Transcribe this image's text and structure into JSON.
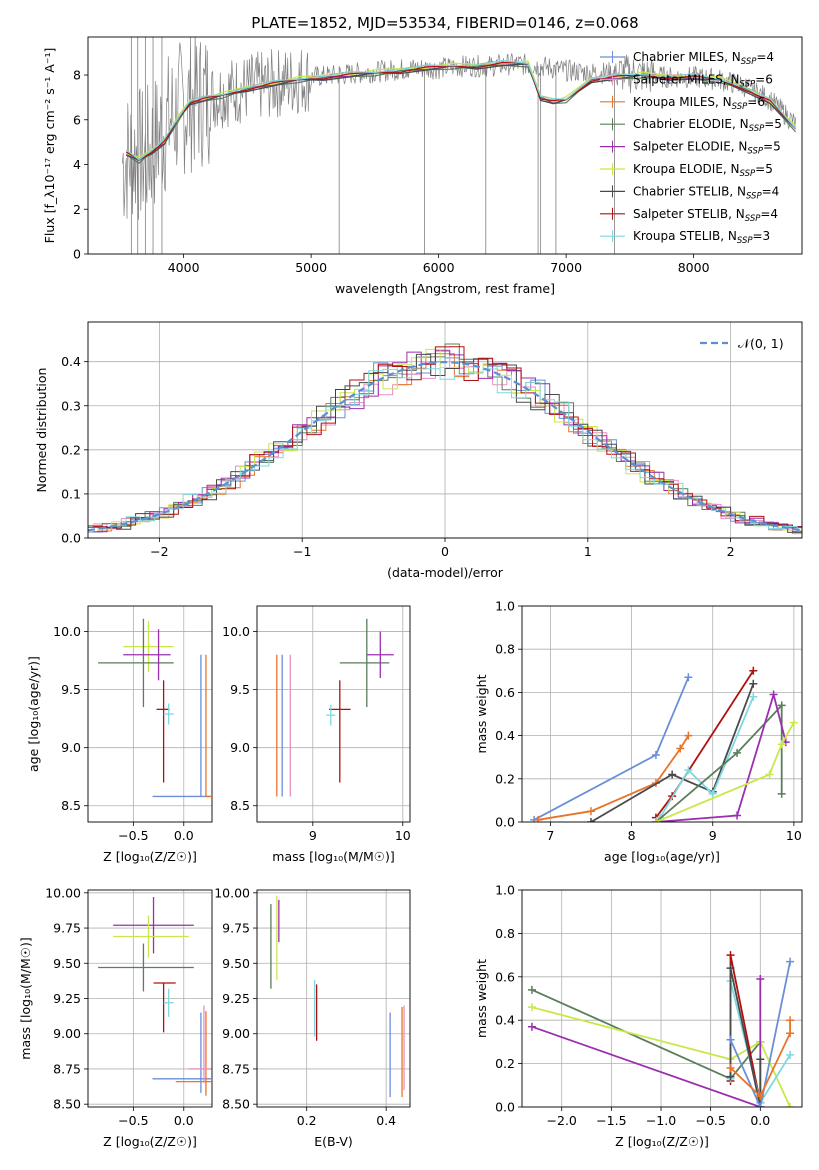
{
  "colors": {
    "chabrier_miles": "#6a8fd8",
    "salpeter_miles": "#e88fc4",
    "kroupa_miles": "#e8742a",
    "chabrier_elodie": "#5a7d5a",
    "salpeter_elodie": "#9b2fae",
    "kroupa_elodie": "#c8e84a",
    "chabrier_stelib": "#4a4a4a",
    "salpeter_stelib": "#b01010",
    "kroupa_stelib": "#7ed8e0",
    "data_gray": "#808080",
    "normal_curve": "#5b8fd6"
  },
  "chart_data": [
    {
      "id": "spectrum",
      "type": "line",
      "title": "PLATE=1852, MJD=53534, FIBERID=0146, z=0.068",
      "xlabel": "wavelength [Angstrom, rest frame]",
      "ylabel": "Flux [f_λ10⁻¹⁷ erg cm⁻² s⁻¹ A⁻¹]",
      "xlim": [
        3250,
        8850
      ],
      "ylim": [
        0,
        9.7
      ],
      "xticks": [
        4000,
        5000,
        6000,
        7000,
        8000
      ],
      "yticks": [
        0,
        2,
        4,
        6,
        8
      ],
      "grid": false,
      "legend_position": "right",
      "legend": [
        {
          "label": "Chabrier MILES, N",
          "sub": "SSP",
          "tail": "=4",
          "color_key": "chabrier_miles"
        },
        {
          "label": "Salpeter MILES, N",
          "sub": "SSP",
          "tail": "=6",
          "color_key": "salpeter_miles"
        },
        {
          "label": "Kroupa MILES, N",
          "sub": "SSP",
          "tail": "=6",
          "color_key": "kroupa_miles"
        },
        {
          "label": "Chabrier ELODIE, N",
          "sub": "SSP",
          "tail": "=5",
          "color_key": "chabrier_elodie"
        },
        {
          "label": "Salpeter ELODIE, N",
          "sub": "SSP",
          "tail": "=5",
          "color_key": "salpeter_elodie"
        },
        {
          "label": "Kroupa ELODIE, N",
          "sub": "SSP",
          "tail": "=5",
          "color_key": "kroupa_elodie"
        },
        {
          "label": "Chabrier STELIB, N",
          "sub": "SSP",
          "tail": "=4",
          "color_key": "chabrier_stelib"
        },
        {
          "label": "Salpeter STELIB, N",
          "sub": "SSP",
          "tail": "=4",
          "color_key": "salpeter_stelib"
        },
        {
          "label": "Kroupa STELIB, N",
          "sub": "SSP",
          "tail": "=3",
          "color_key": "kroupa_stelib"
        }
      ],
      "model_curve": {
        "x": [
          3550,
          3650,
          3750,
          3850,
          3950,
          4050,
          4150,
          4300,
          4500,
          4700,
          4900,
          5100,
          5300,
          5500,
          5700,
          5900,
          6100,
          6300,
          6500,
          6700,
          6800,
          6900,
          7000,
          7200,
          7400,
          7600,
          7800,
          8000,
          8200,
          8400,
          8600,
          8800
        ],
        "y": [
          4.5,
          4.2,
          4.6,
          5.0,
          6.0,
          6.8,
          6.9,
          7.1,
          7.4,
          7.6,
          7.8,
          7.9,
          8.0,
          8.1,
          8.2,
          8.3,
          8.4,
          8.4,
          8.5,
          8.5,
          7.0,
          6.8,
          6.9,
          7.8,
          7.9,
          8.0,
          7.9,
          7.9,
          7.8,
          7.4,
          6.8,
          5.6
        ]
      },
      "data_curve": {
        "x": [
          3500,
          3600,
          3700,
          3800,
          3900,
          4000,
          4100,
          4200,
          4300,
          4400,
          4500,
          4600,
          4700,
          4800,
          4900,
          5000,
          5200,
          5400,
          5600,
          5800,
          6000,
          6200,
          6400,
          6600,
          6800,
          7000,
          7200,
          7400,
          7600,
          7800,
          8000,
          8200,
          8400,
          8600,
          8800
        ],
        "y": [
          4.0,
          4.5,
          4.3,
          5.2,
          6.1,
          6.6,
          6.9,
          7.0,
          7.2,
          7.3,
          7.4,
          7.5,
          7.6,
          7.7,
          7.8,
          7.9,
          8.0,
          8.1,
          8.2,
          8.3,
          8.3,
          8.4,
          8.4,
          8.5,
          8.4,
          8.2,
          8.1,
          8.1,
          8.0,
          7.9,
          7.9,
          7.8,
          7.5,
          6.9,
          5.8
        ]
      }
    },
    {
      "id": "residuals",
      "type": "step",
      "xlabel": "(data-model)/error",
      "ylabel": "Normed distribution",
      "xlim": [
        -2.5,
        2.5
      ],
      "ylim": [
        0,
        0.49
      ],
      "xticks": [
        -2,
        -1,
        0,
        1,
        2
      ],
      "yticks": [
        0.0,
        0.1,
        0.2,
        0.3,
        0.4
      ],
      "grid": true,
      "legend_position": "top-right",
      "legend": [
        {
          "label": "𝒩(0, 1)",
          "color_key": "normal_curve",
          "style": "dashed"
        }
      ],
      "normal": {
        "mean": 0,
        "sigma": 1
      }
    },
    {
      "id": "age_vs_Z",
      "type": "errorbar",
      "xlabel": "Z [log₁₀(Z/Z☉)]",
      "ylabel": "age  [log₁₀(age/yr)]",
      "xlim": [
        -0.95,
        0.28
      ],
      "ylim": [
        8.36,
        10.22
      ],
      "xticks": [
        -0.5,
        0.0
      ],
      "yticks": [
        8.5,
        9.0,
        9.5,
        10.0
      ],
      "grid": true,
      "points": [
        {
          "color_key": "kroupa_elodie",
          "x": -0.35,
          "xerr": [
            0.25,
            0.25
          ],
          "y": 9.87,
          "yerr": [
            0.22,
            0.22
          ]
        },
        {
          "color_key": "chabrier_elodie",
          "x": -0.4,
          "xerr": [
            0.45,
            0.3
          ],
          "y": 9.73,
          "yerr": [
            0.38,
            0.38
          ]
        },
        {
          "color_key": "salpeter_elodie",
          "x": -0.25,
          "xerr": [
            0.35,
            0.12
          ],
          "y": 9.8,
          "yerr": [
            0.22,
            0.22
          ]
        },
        {
          "color_key": "salpeter_stelib",
          "x": -0.2,
          "xerr": [
            0.07,
            0.06
          ],
          "y": 9.33,
          "yerr": [
            0.63,
            0.25
          ]
        },
        {
          "color_key": "kroupa_stelib",
          "x": -0.15,
          "xerr": [
            0.05,
            0.05
          ],
          "y": 9.29,
          "yerr": [
            0.09,
            0.09
          ]
        },
        {
          "color_key": "chabrier_miles",
          "x": 0.17,
          "xerr": [
            0.48,
            0.1
          ],
          "y": 8.58,
          "yerr": [
            0.0,
            1.22
          ]
        },
        {
          "color_key": "kroupa_miles",
          "x": 0.22,
          "xerr": [
            0.0,
            0.05
          ],
          "y": 8.58,
          "yerr": [
            0.0,
            1.22
          ]
        }
      ]
    },
    {
      "id": "age_vs_mass",
      "type": "errorbar",
      "xlabel": "mass [log₁₀(M/M☉)]",
      "ylabel": "",
      "xlim": [
        8.38,
        10.08
      ],
      "ylim": [
        8.36,
        10.22
      ],
      "xticks": [
        9,
        10
      ],
      "yticks": [
        8.5,
        9.0,
        9.5,
        10.0
      ],
      "grid": true,
      "points": [
        {
          "color_key": "chabrier_elodie",
          "x": 9.6,
          "xerr": [
            0.3,
            0.25
          ],
          "y": 9.73,
          "yerr": [
            0.38,
            0.38
          ]
        },
        {
          "color_key": "salpeter_elodie",
          "x": 9.75,
          "xerr": [
            0.15,
            0.15
          ],
          "y": 9.8,
          "yerr": [
            0.2,
            0.2
          ]
        },
        {
          "color_key": "salpeter_stelib",
          "x": 9.3,
          "xerr": [
            0.12,
            0.12
          ],
          "y": 9.33,
          "yerr": [
            0.63,
            0.25
          ]
        },
        {
          "color_key": "kroupa_stelib",
          "x": 9.2,
          "xerr": [
            0.05,
            0.05
          ],
          "y": 9.28,
          "yerr": [
            0.09,
            0.09
          ]
        },
        {
          "color_key": "chabrier_miles",
          "x": 8.66,
          "xerr": [
            0.0,
            0.0
          ],
          "y": 8.58,
          "yerr": [
            0.0,
            1.22
          ]
        },
        {
          "color_key": "kroupa_miles",
          "x": 8.6,
          "xerr": [
            0.0,
            0.0
          ],
          "y": 8.58,
          "yerr": [
            0.0,
            1.22
          ]
        },
        {
          "color_key": "salpeter_miles",
          "x": 8.75,
          "xerr": [
            0.0,
            0.0
          ],
          "y": 8.58,
          "yerr": [
            0.0,
            1.22
          ]
        }
      ]
    },
    {
      "id": "mass_weight_vs_age",
      "type": "line",
      "xlabel": "age  [log₁₀(age/yr)]",
      "ylabel": "mass weight",
      "xlim": [
        6.65,
        10.1
      ],
      "ylim": [
        0,
        1.0
      ],
      "xticks": [
        7,
        8,
        9,
        10
      ],
      "yticks": [
        0.0,
        0.2,
        0.4,
        0.6,
        0.8,
        1.0
      ],
      "grid": true,
      "series": [
        {
          "color_key": "chabrier_miles",
          "x": [
            6.8,
            8.3,
            8.7
          ],
          "y": [
            0.01,
            0.31,
            0.67
          ]
        },
        {
          "color_key": "kroupa_miles",
          "x": [
            6.85,
            7.5,
            8.3,
            8.6,
            8.7
          ],
          "y": [
            0.01,
            0.05,
            0.18,
            0.34,
            0.4
          ]
        },
        {
          "color_key": "salpeter_stelib",
          "x": [
            8.3,
            8.5,
            9.5
          ],
          "y": [
            0.02,
            0.12,
            0.7
          ]
        },
        {
          "color_key": "chabrier_stelib",
          "x": [
            7.5,
            8.5,
            9.0,
            9.5
          ],
          "y": [
            0.0,
            0.22,
            0.14,
            0.64
          ]
        },
        {
          "color_key": "kroupa_stelib",
          "x": [
            8.35,
            8.7,
            9.0,
            9.5
          ],
          "y": [
            0.02,
            0.24,
            0.13,
            0.58
          ]
        },
        {
          "color_key": "chabrier_elodie",
          "x": [
            8.3,
            9.3,
            9.85,
            9.85
          ],
          "y": [
            0.0,
            0.32,
            0.54,
            0.13
          ]
        },
        {
          "color_key": "salpeter_elodie",
          "x": [
            8.3,
            9.3,
            9.75,
            9.9
          ],
          "y": [
            0.0,
            0.03,
            0.59,
            0.37
          ]
        },
        {
          "color_key": "kroupa_elodie",
          "x": [
            8.3,
            9.7,
            9.85,
            10.0
          ],
          "y": [
            0.0,
            0.22,
            0.36,
            0.46
          ]
        }
      ]
    },
    {
      "id": "mass_vs_Z",
      "type": "errorbar",
      "xlabel": "Z [log₁₀(Z/Z☉)]",
      "ylabel": "mass [log₁₀(M/M☉)]",
      "xlim": [
        -0.95,
        0.28
      ],
      "ylim": [
        8.48,
        10.02
      ],
      "xticks": [
        -0.5,
        0.0
      ],
      "yticks": [
        8.5,
        8.75,
        9.0,
        9.25,
        9.5,
        9.75,
        10.0
      ],
      "grid": true,
      "points": [
        {
          "color_key": "salpeter_elodie",
          "x": -0.3,
          "xerr": [
            0.4,
            0.4
          ],
          "y": 9.77,
          "yerr": [
            0.2,
            0.2
          ]
        },
        {
          "color_key": "kroupa_elodie",
          "x": -0.35,
          "xerr": [
            0.35,
            0.4
          ],
          "y": 9.69,
          "yerr": [
            0.15,
            0.15
          ]
        },
        {
          "color_key": "chabrier_elodie",
          "x": -0.4,
          "xerr": [
            0.45,
            0.5
          ],
          "y": 9.47,
          "yerr": [
            0.17,
            0.17
          ]
        },
        {
          "color_key": "salpeter_stelib",
          "x": -0.2,
          "xerr": [
            0.1,
            0.12
          ],
          "y": 9.36,
          "yerr": [
            0.35,
            0.0
          ]
        },
        {
          "color_key": "kroupa_stelib",
          "x": -0.15,
          "xerr": [
            0.05,
            0.05
          ],
          "y": 9.22,
          "yerr": [
            0.1,
            0.1
          ]
        },
        {
          "color_key": "chabrier_miles",
          "x": 0.17,
          "xerr": [
            0.48,
            0.1
          ],
          "y": 8.68,
          "yerr": [
            0.1,
            0.47
          ]
        },
        {
          "color_key": "kroupa_miles",
          "x": 0.22,
          "xerr": [
            0.3,
            0.05
          ],
          "y": 8.66,
          "yerr": [
            0.1,
            0.5
          ]
        },
        {
          "color_key": "salpeter_miles",
          "x": 0.2,
          "xerr": [
            0.15,
            0.1
          ],
          "y": 8.75,
          "yerr": [
            0.1,
            0.45
          ]
        }
      ]
    },
    {
      "id": "mass_vs_EBV",
      "type": "errorbar",
      "xlabel": "E(B-V)",
      "ylabel": "",
      "xlim": [
        0.075,
        0.46
      ],
      "ylim": [
        8.48,
        10.02
      ],
      "xticks": [
        0.2,
        0.4
      ],
      "yticks": [
        8.5,
        8.75,
        9.0,
        9.25,
        9.5,
        9.75,
        10.0
      ],
      "grid": true,
      "points": [
        {
          "color_key": "chabrier_elodie",
          "x": 0.11,
          "xerr": [
            0,
            0
          ],
          "y": 9.62,
          "yerr": [
            0.3,
            0.3
          ]
        },
        {
          "color_key": "salpeter_elodie",
          "x": 0.13,
          "xerr": [
            0,
            0
          ],
          "y": 9.8,
          "yerr": [
            0.15,
            0.15
          ]
        },
        {
          "color_key": "kroupa_elodie",
          "x": 0.125,
          "xerr": [
            0,
            0
          ],
          "y": 9.68,
          "yerr": [
            0.3,
            0.3
          ]
        },
        {
          "color_key": "salpeter_stelib",
          "x": 0.225,
          "xerr": [
            0,
            0
          ],
          "y": 9.15,
          "yerr": [
            0.2,
            0.2
          ]
        },
        {
          "color_key": "kroupa_stelib",
          "x": 0.22,
          "xerr": [
            0,
            0
          ],
          "y": 9.18,
          "yerr": [
            0.2,
            0.2
          ]
        },
        {
          "color_key": "chabrier_miles",
          "x": 0.41,
          "xerr": [
            0,
            0
          ],
          "y": 8.85,
          "yerr": [
            0.3,
            0.3
          ]
        },
        {
          "color_key": "kroupa_miles",
          "x": 0.44,
          "xerr": [
            0,
            0
          ],
          "y": 8.87,
          "yerr": [
            0.32,
            0.32
          ]
        },
        {
          "color_key": "salpeter_miles",
          "x": 0.445,
          "xerr": [
            0,
            0
          ],
          "y": 8.9,
          "yerr": [
            0.3,
            0.3
          ]
        }
      ]
    },
    {
      "id": "mass_weight_vs_Z",
      "type": "line",
      "xlabel": "Z [log₁₀(Z/Z☉)]",
      "ylabel": "mass weight",
      "xlim": [
        -2.4,
        0.42
      ],
      "ylim": [
        0,
        1.0
      ],
      "xticks": [
        -2.0,
        -1.5,
        -1.0,
        -0.5,
        0.0
      ],
      "yticks": [
        0.0,
        0.2,
        0.4,
        0.6,
        0.8,
        1.0
      ],
      "grid": true,
      "series": [
        {
          "color_key": "chabrier_elodie",
          "x": [
            -2.3,
            -0.3,
            0.0
          ],
          "y": [
            0.54,
            0.13,
            0.3
          ]
        },
        {
          "color_key": "kroupa_elodie",
          "x": [
            -2.3,
            -0.3,
            0.0,
            0.3
          ],
          "y": [
            0.46,
            0.22,
            0.3,
            0.0
          ]
        },
        {
          "color_key": "salpeter_elodie",
          "x": [
            -2.3,
            0.0,
            0.0
          ],
          "y": [
            0.37,
            0.0,
            0.59
          ]
        },
        {
          "color_key": "salpeter_stelib",
          "x": [
            -0.3,
            -0.3,
            0.0
          ],
          "y": [
            0.12,
            0.7,
            0.02
          ]
        },
        {
          "color_key": "kroupa_stelib",
          "x": [
            -0.3,
            -0.3,
            0.0,
            0.3
          ],
          "y": [
            0.13,
            0.58,
            0.02,
            0.24
          ]
        },
        {
          "color_key": "chabrier_stelib",
          "x": [
            -0.3,
            -0.3,
            0.0,
            0.0
          ],
          "y": [
            0.14,
            0.64,
            0.0,
            0.22
          ]
        },
        {
          "color_key": "chabrier_miles",
          "x": [
            -0.3,
            0.0,
            0.3
          ],
          "y": [
            0.31,
            0.0,
            0.67
          ]
        },
        {
          "color_key": "kroupa_miles",
          "x": [
            -0.3,
            0.0,
            0.3,
            0.3
          ],
          "y": [
            0.18,
            0.05,
            0.34,
            0.4
          ]
        }
      ]
    }
  ]
}
